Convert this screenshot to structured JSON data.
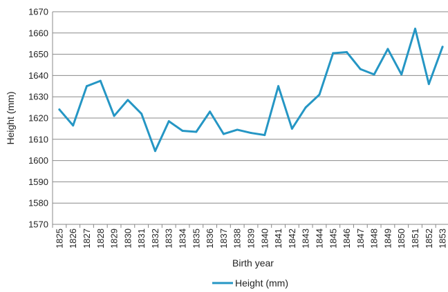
{
  "chart_data": {
    "type": "line",
    "title": "",
    "xlabel": "Birth year",
    "ylabel": "Height (mm)",
    "ylim": [
      1570,
      1670
    ],
    "yticks": [
      1570,
      1580,
      1590,
      1600,
      1610,
      1620,
      1630,
      1640,
      1650,
      1660,
      1670
    ],
    "grid": "horizontal",
    "legend_position": "bottom",
    "categories": [
      "1825",
      "1826",
      "1827",
      "1828",
      "1829",
      "1830",
      "1831",
      "1832",
      "1833",
      "1834",
      "1835",
      "1836",
      "1837",
      "1838",
      "1839",
      "1840",
      "1841",
      "1842",
      "1843",
      "1844",
      "1845",
      "1846",
      "1847",
      "1848",
      "1849",
      "1850",
      "1851",
      "1852",
      "1853"
    ],
    "series": [
      {
        "name": "Height (mm)",
        "color": "#2596C4",
        "values": [
          1624,
          1616.5,
          1635,
          1637.5,
          1621,
          1628.5,
          1622,
          1604.5,
          1618.5,
          1614,
          1613.5,
          1623,
          1612.5,
          1614.5,
          1613,
          1612,
          1635,
          1615,
          1625,
          1631,
          1650.5,
          1651,
          1643,
          1640.5,
          1652.5,
          1640.5,
          1662,
          1636,
          1653.5
        ]
      }
    ]
  }
}
